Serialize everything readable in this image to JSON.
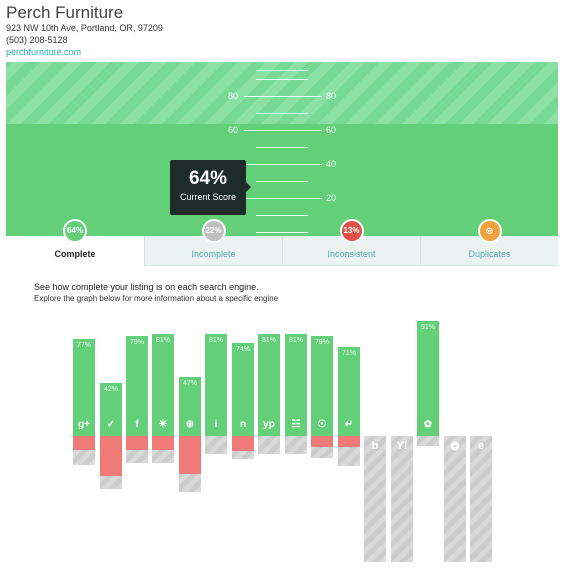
{
  "business": {
    "name": "Perch Furniture",
    "address": "923 NW 10th Ave, Portland, OR, 97209",
    "phone": "(503) 208-5128",
    "website": "perchfurniture.com"
  },
  "score": {
    "value": "64%",
    "label": "Current Score",
    "scale": [
      "80",
      "60",
      "40",
      "20"
    ]
  },
  "tabs": [
    {
      "label": "Complete",
      "badge": "64%",
      "color": "#63cf78",
      "active": true
    },
    {
      "label": "Incomplete",
      "badge": "22%",
      "color": "#bfbfbf",
      "active": false
    },
    {
      "label": "Inconsistent",
      "badge": "13%",
      "color": "#e0524a",
      "active": false
    },
    {
      "label": "Duplicates",
      "badge": "◎",
      "color": "#f0a03c",
      "active": false
    }
  ],
  "intro": {
    "line1": "See how complete your listing is on each search engine.",
    "line2": "Explore the graph below for more information about a specific engine"
  },
  "engines": [
    {
      "icon": "google-plus-icon",
      "glyph": "g+",
      "pct": "77%",
      "complete": 77,
      "inconsistent": 11,
      "missing": 12
    },
    {
      "icon": "yellowpages-icon",
      "glyph": "✓",
      "pct": "42%",
      "complete": 42,
      "inconsistent": 32,
      "missing": 10
    },
    {
      "icon": "facebook-icon",
      "glyph": "f",
      "pct": "79%",
      "complete": 79,
      "inconsistent": 11,
      "missing": 10
    },
    {
      "icon": "yelp-icon",
      "glyph": "✳",
      "pct": "81%",
      "complete": 81,
      "inconsistent": 11,
      "missing": 10
    },
    {
      "icon": "superpages-icon",
      "glyph": "⊕",
      "pct": "47%",
      "complete": 47,
      "inconsistent": 30,
      "missing": 14
    },
    {
      "icon": "citysearch-icon",
      "glyph": "i",
      "pct": "81%",
      "complete": 81,
      "inconsistent": 0,
      "missing": 14
    },
    {
      "icon": "neustar-icon",
      "glyph": "n",
      "pct": "74%",
      "complete": 74,
      "inconsistent": 12,
      "missing": 6
    },
    {
      "icon": "yp-icon",
      "glyph": "yp",
      "pct": "81%",
      "complete": 81,
      "inconsistent": 0,
      "missing": 14
    },
    {
      "icon": "foursquare-icon",
      "glyph": "☷",
      "pct": "81%",
      "complete": 81,
      "inconsistent": 0,
      "missing": 14
    },
    {
      "icon": "mapquest-icon",
      "glyph": "☉",
      "pct": "79%",
      "complete": 79,
      "inconsistent": 9,
      "missing": 9
    },
    {
      "icon": "localcom-icon",
      "glyph": "↵",
      "pct": "71%",
      "complete": 71,
      "inconsistent": 9,
      "missing": 15
    },
    {
      "icon": "bing-icon",
      "glyph": "b",
      "pct": "",
      "complete": 0,
      "inconsistent": 0,
      "missing": 100
    },
    {
      "icon": "yahoo-icon",
      "glyph": "Y!",
      "pct": "",
      "complete": 0,
      "inconsistent": 0,
      "missing": 100
    },
    {
      "icon": "yelp-alt-icon",
      "glyph": "✿",
      "pct": "91%",
      "complete": 91,
      "inconsistent": 0,
      "missing": 8
    },
    {
      "icon": "globe-icon",
      "glyph": "❂",
      "pct": "",
      "complete": 0,
      "inconsistent": 0,
      "missing": 100
    },
    {
      "icon": "ie-icon",
      "glyph": "e",
      "pct": "",
      "complete": 0,
      "inconsistent": 0,
      "missing": 100
    }
  ]
}
